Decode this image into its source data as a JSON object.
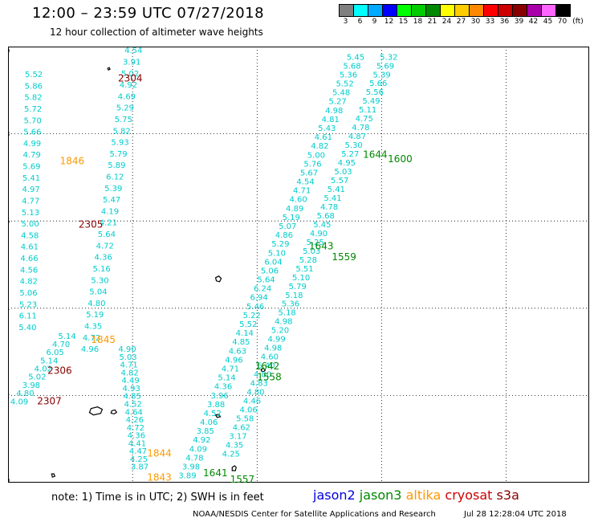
{
  "header": {
    "title": "12:00 – 23:59 UTC 07/27/2018",
    "subtitle": "12 hour collection of altimeter wave heights"
  },
  "legend": {
    "unit": "(ft)",
    "bins": [
      {
        "label": "3",
        "color": "#808080"
      },
      {
        "label": "6",
        "color": "#00ffff"
      },
      {
        "label": "9",
        "color": "#00aaff"
      },
      {
        "label": "12",
        "color": "#0000ff"
      },
      {
        "label": "15",
        "color": "#00ff00"
      },
      {
        "label": "18",
        "color": "#00cc00"
      },
      {
        "label": "21",
        "color": "#008800"
      },
      {
        "label": "24",
        "color": "#ffff00"
      },
      {
        "label": "27",
        "color": "#ffcc00"
      },
      {
        "label": "30",
        "color": "#ff8800"
      },
      {
        "label": "33",
        "color": "#ff0000"
      },
      {
        "label": "36",
        "color": "#cc0000"
      },
      {
        "label": "39",
        "color": "#880000"
      },
      {
        "label": "42",
        "color": "#aa00aa"
      },
      {
        "label": "45",
        "color": "#ff66ff"
      },
      {
        "label": "70",
        "color": "#000000"
      }
    ]
  },
  "map": {
    "lon_ticks": [
      "165",
      "168",
      "171",
      "174",
      "177"
    ],
    "lat_ticks": [
      "10",
      "12",
      "14",
      "16",
      "18",
      "20"
    ],
    "lon_range": [
      165,
      179
    ],
    "lat_range": [
      10,
      20
    ],
    "grid": "dotted"
  },
  "tracks": {
    "colors": {
      "jason2": "#0000dd",
      "jason3": "#008800",
      "altika": "#ff9900",
      "cryosat": "#cc0000",
      "s3a": "#880000"
    },
    "time_labels": [
      {
        "text": "2304",
        "sat": "s3a",
        "lon": 167.65,
        "lat": 19.2
      },
      {
        "text": "1846",
        "sat": "altika",
        "lon": 166.25,
        "lat": 17.3
      },
      {
        "text": "2305",
        "sat": "s3a",
        "lon": 166.7,
        "lat": 15.85
      },
      {
        "text": "1845",
        "sat": "altika",
        "lon": 167.0,
        "lat": 13.2
      },
      {
        "text": "2306",
        "sat": "s3a",
        "lon": 165.95,
        "lat": 12.5
      },
      {
        "text": "2307",
        "sat": "s3a",
        "lon": 165.7,
        "lat": 11.8
      },
      {
        "text": "1844",
        "sat": "altika",
        "lon": 168.35,
        "lat": 10.6
      },
      {
        "text": "1843",
        "sat": "altika",
        "lon": 168.35,
        "lat": 10.05
      },
      {
        "text": "1644",
        "sat": "jason3",
        "lon": 173.55,
        "lat": 17.45
      },
      {
        "text": "1600",
        "sat": "jason3",
        "lon": 174.15,
        "lat": 17.35
      },
      {
        "text": "1643",
        "sat": "jason3",
        "lon": 172.25,
        "lat": 15.35
      },
      {
        "text": "1559",
        "sat": "jason3",
        "lon": 172.8,
        "lat": 15.1
      },
      {
        "text": "1642",
        "sat": "jason3",
        "lon": 170.95,
        "lat": 12.6
      },
      {
        "text": "1558",
        "sat": "jason3",
        "lon": 171.0,
        "lat": 12.35
      },
      {
        "text": "1641",
        "sat": "jason3",
        "lon": 169.7,
        "lat": 10.15
      },
      {
        "text": "1557",
        "sat": "jason3",
        "lon": 170.35,
        "lat": 10.0
      }
    ],
    "swh_tracks": [
      {
        "name": "s3a-pass-a",
        "start": [
          168.0,
          19.85
        ],
        "end": [
          166.95,
          13.0
        ],
        "values": [
          "4.54",
          "3.91",
          "5.02",
          "4.92",
          "4.69",
          "5.29",
          "5.75",
          "5.82",
          "5.93",
          "5.79",
          "5.89",
          "6.12",
          "5.39",
          "5.47",
          "4.19",
          "4.21",
          "5.64",
          "4.72",
          "4.36",
          "5.16",
          "5.30",
          "5.04",
          "4.80",
          "5.19",
          "4.35",
          "4.72",
          "4.96"
        ]
      },
      {
        "name": "s3a-pass-b",
        "start": [
          165.6,
          19.3
        ],
        "end": [
          165.45,
          13.5
        ],
        "values": [
          "5.52",
          "5.86",
          "5.82",
          "5.72",
          "5.70",
          "5.66",
          "4.99",
          "4.79",
          "5.69",
          "5.41",
          "4.97",
          "4.77",
          "5.13",
          "5.00",
          "4.58",
          "4.61",
          "4.66",
          "4.56",
          "4.82",
          "5.06",
          "5.23",
          "6.11",
          "5.40"
        ]
      },
      {
        "name": "altika-pass-a",
        "start": [
          166.4,
          13.3
        ],
        "end": [
          165.25,
          11.8
        ],
        "values": [
          "5.14",
          "4.70",
          "6.05",
          "5.14",
          "4.02",
          "5.02",
          "3.98",
          "4.80",
          "4.09"
        ]
      },
      {
        "name": "altika-pass-b",
        "start": [
          167.85,
          13.0
        ],
        "end": [
          168.15,
          10.3
        ],
        "values": [
          "4.90",
          "5.03",
          "4.71",
          "4.82",
          "4.49",
          "4.93",
          "4.85",
          "4.52",
          "4.64",
          "4.26",
          "4.72",
          "4.36",
          "4.41",
          "4.47",
          "4.25",
          "3.87"
        ]
      },
      {
        "name": "jason3-pass-a",
        "start": [
          173.35,
          19.7
        ],
        "end": [
          169.3,
          10.1
        ],
        "values": [
          "5.45",
          "5.68",
          "5.36",
          "5.52",
          "5.48",
          "5.27",
          "4.98",
          "4.81",
          "5.43",
          "4.61",
          "4.82",
          "5.00",
          "5.76",
          "5.67",
          "4.54",
          "4.71",
          "4.60",
          "4.89",
          "5.19",
          "5.07",
          "4.86",
          "5.29",
          "5.10",
          "6.04",
          "5.06",
          "5.64",
          "6.24",
          "6.94",
          "5.46",
          "5.22",
          "5.52",
          "4.14",
          "4.85",
          "4.63",
          "4.96",
          "4.71",
          "5.14",
          "4.36",
          "3.96",
          "3.88",
          "4.52",
          "4.06",
          "3.85",
          "4.92",
          "4.09",
          "4.78",
          "3.98",
          "3.89"
        ]
      },
      {
        "name": "jason3-pass-b",
        "start": [
          174.15,
          19.7
        ],
        "end": [
          170.35,
          10.6
        ],
        "values": [
          "5.32",
          "5.69",
          "5.39",
          "5.66",
          "5.56",
          "5.49",
          "5.11",
          "4.75",
          "4.78",
          "4.87",
          "5.30",
          "5.27",
          "4.95",
          "5.03",
          "5.57",
          "5.41",
          "5.41",
          "4.78",
          "5.68",
          "5.45",
          "4.90",
          "5.25",
          "5.03",
          "5.28",
          "5.51",
          "5.10",
          "5.79",
          "5.18",
          "5.36",
          "5.18",
          "4.98",
          "5.20",
          "4.99",
          "4.98",
          "4.60",
          "6.40",
          "4.80",
          "4.83",
          "4.80",
          "4.46",
          "4.06",
          "5.58",
          "4.62",
          "3.17",
          "4.35",
          "4.25"
        ]
      }
    ]
  },
  "footer": {
    "note": "note: 1) Time is in UTC; 2) SWH is in feet",
    "satellites": [
      {
        "name": "jason2",
        "color": "#0000dd"
      },
      {
        "name": "jason3",
        "color": "#008800"
      },
      {
        "name": "altika",
        "color": "#ff9900"
      },
      {
        "name": "cryosat",
        "color": "#cc0000"
      },
      {
        "name": "s3a",
        "color": "#880000"
      }
    ],
    "credit": "NOAA/NESDIS Center for Satellite Applications and Research",
    "timestamp": "Jul 28 12:28:04 UTC 2018"
  }
}
